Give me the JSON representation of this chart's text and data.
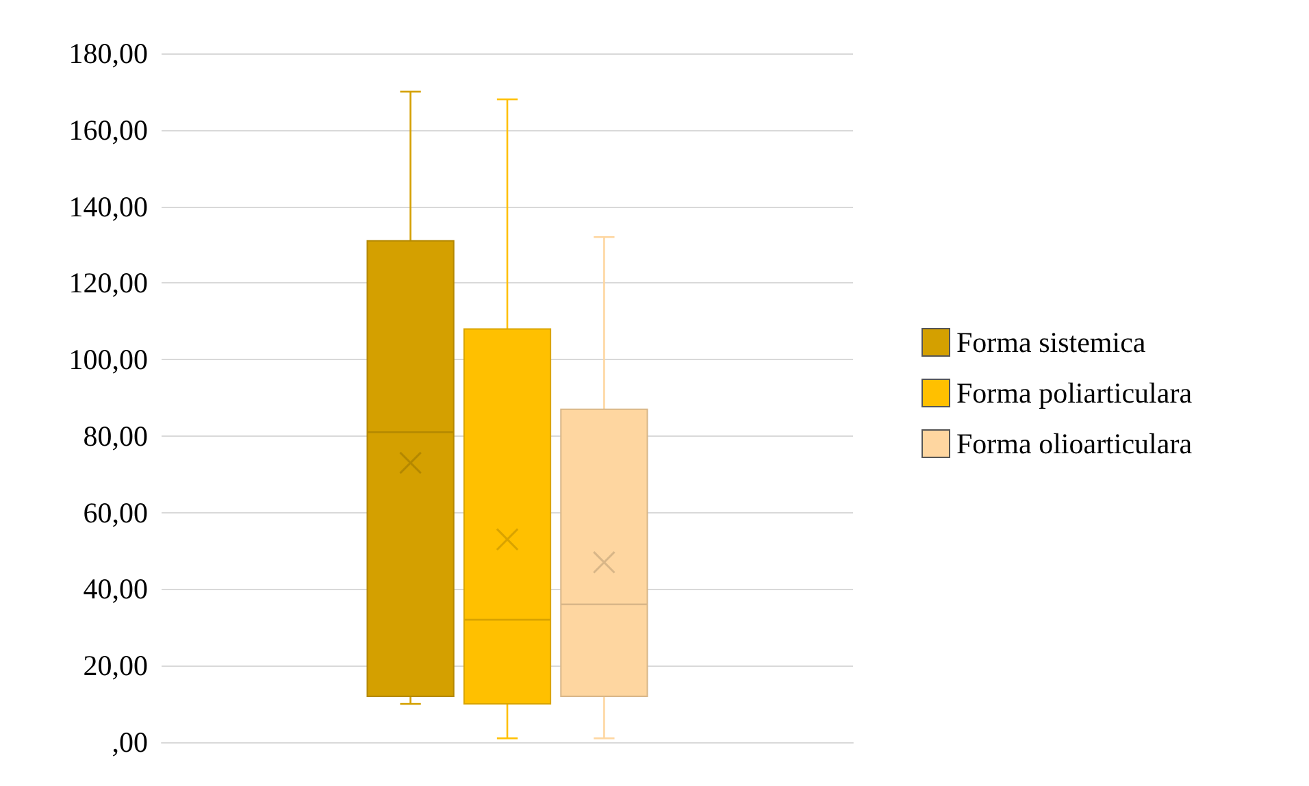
{
  "chart_data": {
    "type": "box",
    "categories": [
      null
    ],
    "series": [
      {
        "name": "Forma sistemica",
        "color": "#d4a000",
        "boxes": [
          {
            "low": 10,
            "q1": 12,
            "median": 81,
            "q3": 131,
            "high": 170,
            "mean": 73
          }
        ]
      },
      {
        "name": "Forma poliarticulara",
        "color": "#ffc000",
        "boxes": [
          {
            "low": 1,
            "q1": 10,
            "median": 32,
            "q3": 108,
            "high": 168,
            "mean": 53
          }
        ]
      },
      {
        "name": "Forma olioarticulara",
        "color": "#fed6a0",
        "boxes": [
          {
            "low": 1,
            "q1": 12,
            "median": 36,
            "q3": 87,
            "high": 132,
            "mean": 47
          }
        ]
      }
    ],
    "ylim": [
      0,
      180
    ],
    "yticks": [
      {
        "value": 0,
        "label": ",00"
      },
      {
        "value": 20,
        "label": "20,00"
      },
      {
        "value": 40,
        "label": "40,00"
      },
      {
        "value": 60,
        "label": "60,00"
      },
      {
        "value": 80,
        "label": "80,00"
      },
      {
        "value": 100,
        "label": "100,00"
      },
      {
        "value": 120,
        "label": "120,00"
      },
      {
        "value": 140,
        "label": "140,00"
      },
      {
        "value": 160,
        "label": "160,00"
      },
      {
        "value": 180,
        "label": "180,00"
      }
    ],
    "grid": "y",
    "legend": "right",
    "marker": "cross"
  }
}
